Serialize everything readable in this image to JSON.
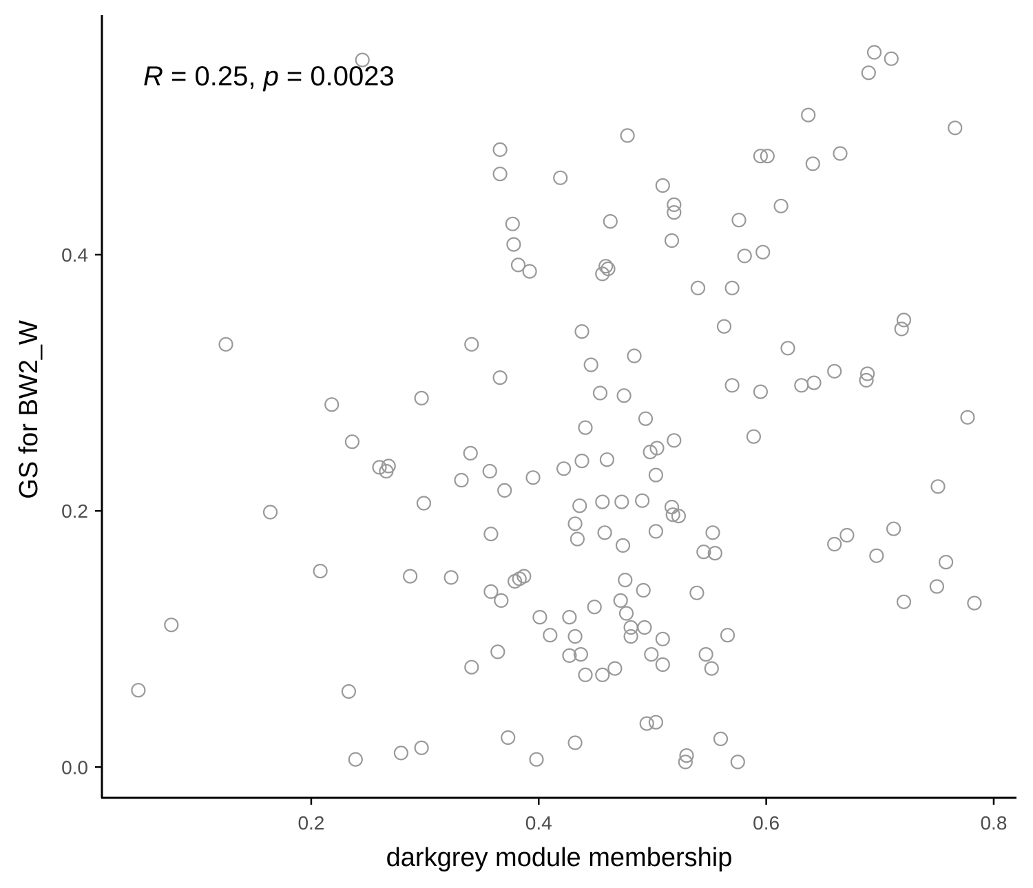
{
  "chart_data": {
    "type": "scatter",
    "title": "",
    "xlabel": "darkgrey module membership",
    "ylabel": "GS for BW2_W",
    "xlim": [
      0.016,
      0.82
    ],
    "ylim": [
      -0.024,
      0.587
    ],
    "xticks": [
      0.2,
      0.4,
      0.6,
      0.8
    ],
    "xtick_labels": [
      "0.2",
      "0.4",
      "0.6",
      "0.8"
    ],
    "yticks": [
      0.0,
      0.2,
      0.4
    ],
    "ytick_labels": [
      "0.0",
      "0.2",
      "0.4"
    ],
    "grid": false,
    "legend": "none",
    "point_style": "open-circle",
    "point_color": "#999999",
    "annotation": {
      "r_symbol": "R",
      "r_text": " = 0.25, ",
      "p_symbol": "p",
      "p_text": " = 0.0023"
    },
    "points": [
      {
        "x": 0.048,
        "y": 0.06
      },
      {
        "x": 0.077,
        "y": 0.111
      },
      {
        "x": 0.125,
        "y": 0.33
      },
      {
        "x": 0.164,
        "y": 0.199
      },
      {
        "x": 0.208,
        "y": 0.153
      },
      {
        "x": 0.218,
        "y": 0.283
      },
      {
        "x": 0.233,
        "y": 0.059
      },
      {
        "x": 0.236,
        "y": 0.254
      },
      {
        "x": 0.239,
        "y": 0.006
      },
      {
        "x": 0.245,
        "y": 0.552
      },
      {
        "x": 0.26,
        "y": 0.234
      },
      {
        "x": 0.266,
        "y": 0.231
      },
      {
        "x": 0.268,
        "y": 0.235
      },
      {
        "x": 0.279,
        "y": 0.011
      },
      {
        "x": 0.287,
        "y": 0.149
      },
      {
        "x": 0.297,
        "y": 0.288
      },
      {
        "x": 0.297,
        "y": 0.015
      },
      {
        "x": 0.299,
        "y": 0.206
      },
      {
        "x": 0.323,
        "y": 0.148
      },
      {
        "x": 0.332,
        "y": 0.224
      },
      {
        "x": 0.34,
        "y": 0.245
      },
      {
        "x": 0.341,
        "y": 0.33
      },
      {
        "x": 0.341,
        "y": 0.078
      },
      {
        "x": 0.357,
        "y": 0.231
      },
      {
        "x": 0.358,
        "y": 0.137
      },
      {
        "x": 0.358,
        "y": 0.182
      },
      {
        "x": 0.364,
        "y": 0.09
      },
      {
        "x": 0.366,
        "y": 0.482
      },
      {
        "x": 0.366,
        "y": 0.463
      },
      {
        "x": 0.366,
        "y": 0.304
      },
      {
        "x": 0.367,
        "y": 0.13
      },
      {
        "x": 0.37,
        "y": 0.216
      },
      {
        "x": 0.373,
        "y": 0.023
      },
      {
        "x": 0.377,
        "y": 0.424
      },
      {
        "x": 0.378,
        "y": 0.408
      },
      {
        "x": 0.379,
        "y": 0.145
      },
      {
        "x": 0.382,
        "y": 0.392
      },
      {
        "x": 0.383,
        "y": 0.147
      },
      {
        "x": 0.387,
        "y": 0.149
      },
      {
        "x": 0.392,
        "y": 0.387
      },
      {
        "x": 0.395,
        "y": 0.226
      },
      {
        "x": 0.398,
        "y": 0.006
      },
      {
        "x": 0.401,
        "y": 0.117
      },
      {
        "x": 0.41,
        "y": 0.103
      },
      {
        "x": 0.419,
        "y": 0.46
      },
      {
        "x": 0.422,
        "y": 0.233
      },
      {
        "x": 0.427,
        "y": 0.117
      },
      {
        "x": 0.427,
        "y": 0.087
      },
      {
        "x": 0.432,
        "y": 0.102
      },
      {
        "x": 0.432,
        "y": 0.19
      },
      {
        "x": 0.432,
        "y": 0.019
      },
      {
        "x": 0.434,
        "y": 0.178
      },
      {
        "x": 0.436,
        "y": 0.204
      },
      {
        "x": 0.437,
        "y": 0.088
      },
      {
        "x": 0.438,
        "y": 0.34
      },
      {
        "x": 0.438,
        "y": 0.239
      },
      {
        "x": 0.441,
        "y": 0.265
      },
      {
        "x": 0.441,
        "y": 0.072
      },
      {
        "x": 0.446,
        "y": 0.314
      },
      {
        "x": 0.449,
        "y": 0.125
      },
      {
        "x": 0.454,
        "y": 0.292
      },
      {
        "x": 0.456,
        "y": 0.207
      },
      {
        "x": 0.456,
        "y": 0.072
      },
      {
        "x": 0.456,
        "y": 0.385
      },
      {
        "x": 0.458,
        "y": 0.183
      },
      {
        "x": 0.459,
        "y": 0.391
      },
      {
        "x": 0.46,
        "y": 0.24
      },
      {
        "x": 0.461,
        "y": 0.389
      },
      {
        "x": 0.463,
        "y": 0.426
      },
      {
        "x": 0.467,
        "y": 0.077
      },
      {
        "x": 0.472,
        "y": 0.13
      },
      {
        "x": 0.473,
        "y": 0.207
      },
      {
        "x": 0.474,
        "y": 0.173
      },
      {
        "x": 0.475,
        "y": 0.29
      },
      {
        "x": 0.476,
        "y": 0.146
      },
      {
        "x": 0.477,
        "y": 0.12
      },
      {
        "x": 0.478,
        "y": 0.493
      },
      {
        "x": 0.481,
        "y": 0.109
      },
      {
        "x": 0.481,
        "y": 0.102
      },
      {
        "x": 0.484,
        "y": 0.321
      },
      {
        "x": 0.491,
        "y": 0.208
      },
      {
        "x": 0.492,
        "y": 0.138
      },
      {
        "x": 0.493,
        "y": 0.109
      },
      {
        "x": 0.494,
        "y": 0.272
      },
      {
        "x": 0.495,
        "y": 0.034
      },
      {
        "x": 0.498,
        "y": 0.246
      },
      {
        "x": 0.499,
        "y": 0.088
      },
      {
        "x": 0.503,
        "y": 0.035
      },
      {
        "x": 0.503,
        "y": 0.228
      },
      {
        "x": 0.503,
        "y": 0.184
      },
      {
        "x": 0.504,
        "y": 0.249
      },
      {
        "x": 0.509,
        "y": 0.454
      },
      {
        "x": 0.509,
        "y": 0.1
      },
      {
        "x": 0.509,
        "y": 0.08
      },
      {
        "x": 0.517,
        "y": 0.411
      },
      {
        "x": 0.517,
        "y": 0.203
      },
      {
        "x": 0.518,
        "y": 0.197
      },
      {
        "x": 0.519,
        "y": 0.255
      },
      {
        "x": 0.519,
        "y": 0.439
      },
      {
        "x": 0.519,
        "y": 0.433
      },
      {
        "x": 0.523,
        "y": 0.196
      },
      {
        "x": 0.529,
        "y": 0.004
      },
      {
        "x": 0.53,
        "y": 0.009
      },
      {
        "x": 0.539,
        "y": 0.136
      },
      {
        "x": 0.54,
        "y": 0.374
      },
      {
        "x": 0.545,
        "y": 0.168
      },
      {
        "x": 0.547,
        "y": 0.088
      },
      {
        "x": 0.552,
        "y": 0.077
      },
      {
        "x": 0.553,
        "y": 0.183
      },
      {
        "x": 0.555,
        "y": 0.167
      },
      {
        "x": 0.56,
        "y": 0.022
      },
      {
        "x": 0.563,
        "y": 0.344
      },
      {
        "x": 0.566,
        "y": 0.103
      },
      {
        "x": 0.57,
        "y": 0.374
      },
      {
        "x": 0.57,
        "y": 0.298
      },
      {
        "x": 0.575,
        "y": 0.004
      },
      {
        "x": 0.576,
        "y": 0.427
      },
      {
        "x": 0.581,
        "y": 0.399
      },
      {
        "x": 0.589,
        "y": 0.258
      },
      {
        "x": 0.595,
        "y": 0.477
      },
      {
        "x": 0.595,
        "y": 0.293
      },
      {
        "x": 0.597,
        "y": 0.402
      },
      {
        "x": 0.601,
        "y": 0.477
      },
      {
        "x": 0.613,
        "y": 0.438
      },
      {
        "x": 0.619,
        "y": 0.327
      },
      {
        "x": 0.631,
        "y": 0.298
      },
      {
        "x": 0.637,
        "y": 0.509
      },
      {
        "x": 0.642,
        "y": 0.3
      },
      {
        "x": 0.641,
        "y": 0.471
      },
      {
        "x": 0.66,
        "y": 0.174
      },
      {
        "x": 0.66,
        "y": 0.309
      },
      {
        "x": 0.665,
        "y": 0.479
      },
      {
        "x": 0.671,
        "y": 0.181
      },
      {
        "x": 0.688,
        "y": 0.302
      },
      {
        "x": 0.689,
        "y": 0.307
      },
      {
        "x": 0.69,
        "y": 0.542
      },
      {
        "x": 0.695,
        "y": 0.558
      },
      {
        "x": 0.697,
        "y": 0.165
      },
      {
        "x": 0.71,
        "y": 0.553
      },
      {
        "x": 0.712,
        "y": 0.186
      },
      {
        "x": 0.719,
        "y": 0.342
      },
      {
        "x": 0.721,
        "y": 0.349
      },
      {
        "x": 0.721,
        "y": 0.129
      },
      {
        "x": 0.75,
        "y": 0.141
      },
      {
        "x": 0.751,
        "y": 0.219
      },
      {
        "x": 0.758,
        "y": 0.16
      },
      {
        "x": 0.766,
        "y": 0.499
      },
      {
        "x": 0.777,
        "y": 0.273
      },
      {
        "x": 0.783,
        "y": 0.128
      }
    ]
  }
}
